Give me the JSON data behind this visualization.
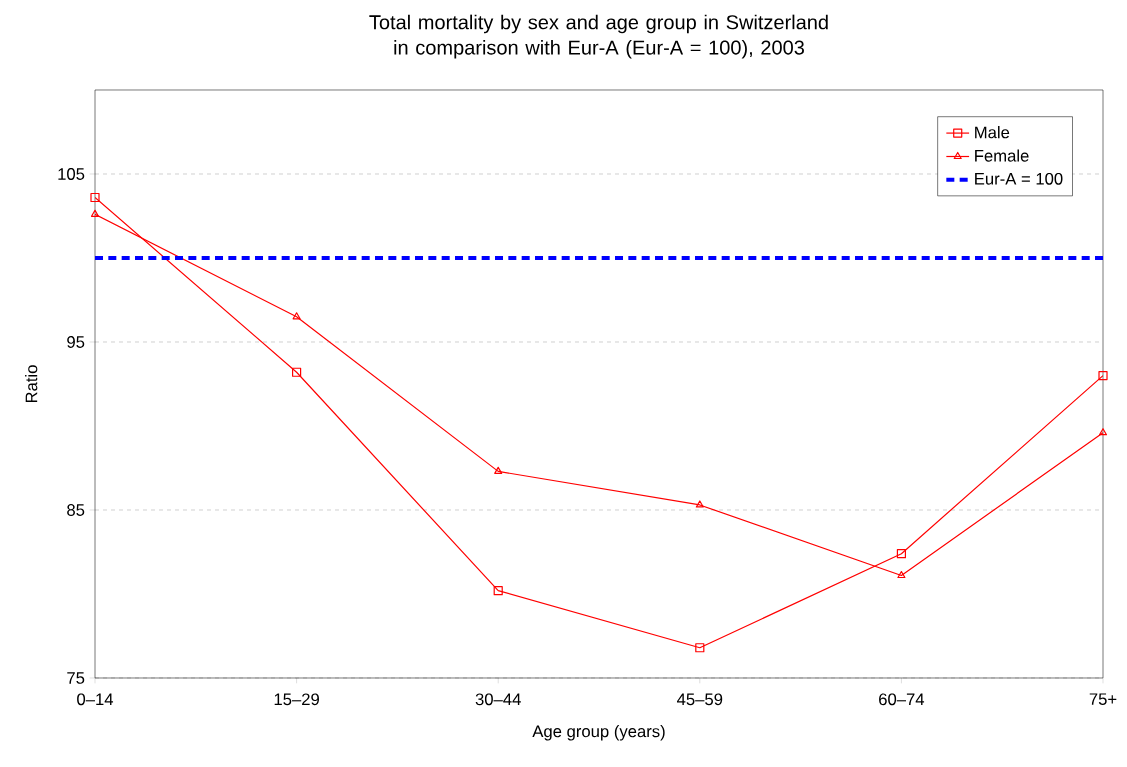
{
  "chart_data": {
    "type": "line",
    "title": "Total mortality by sex and age group in Switzerland in comparison with Eur-A (Eur-A = 100), 2003",
    "xlabel": "Age group (years)",
    "ylabel": "Ratio",
    "categories": [
      "0–14",
      "15–29",
      "30–44",
      "45–59",
      "60–74",
      "75+"
    ],
    "series": [
      {
        "name": "Male",
        "color": "#ff0000",
        "marker": "square",
        "values": [
          103.6,
          93.2,
          80.2,
          76.8,
          82.4,
          93.0
        ]
      },
      {
        "name": "Female",
        "color": "#ff0000",
        "marker": "triangle",
        "values": [
          102.6,
          96.5,
          87.3,
          85.3,
          81.1,
          89.6
        ]
      }
    ],
    "ref_lines": [
      {
        "axis": "y",
        "value": 100,
        "label": "Eur-A = 100",
        "color": "#0000ff",
        "line_style": "dashed"
      }
    ],
    "ylim": [
      75,
      110
    ],
    "yticks": [
      75,
      85,
      95,
      105
    ],
    "grid": "y",
    "legend": "top right"
  }
}
